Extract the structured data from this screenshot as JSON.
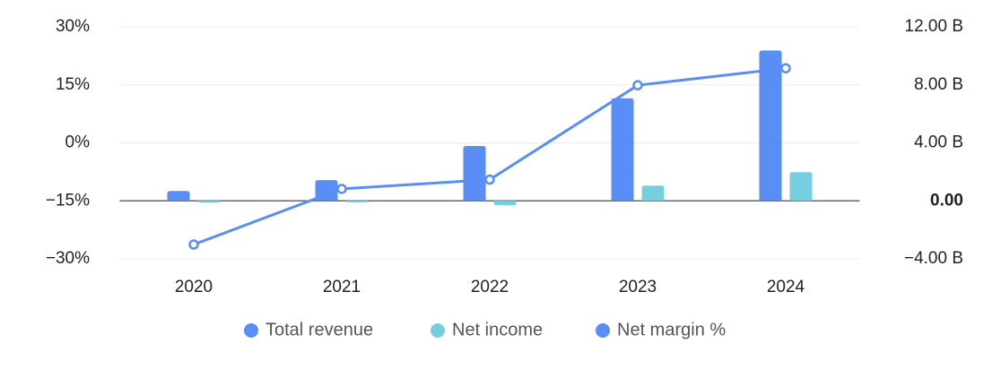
{
  "chart_data": {
    "type": "bar",
    "categories": [
      "2020",
      "2021",
      "2022",
      "2023",
      "2024"
    ],
    "series": [
      {
        "name": "Total revenue",
        "type": "bar",
        "axis": "y2",
        "color": "#5a8ef7",
        "values": [
          0.68,
          1.43,
          3.78,
          7.07,
          10.37
        ]
      },
      {
        "name": "Net income",
        "type": "bar",
        "axis": "y2",
        "color": "#76cfe0",
        "values": [
          -0.12,
          -0.1,
          -0.3,
          1.05,
          1.98
        ]
      },
      {
        "name": "Net margin %",
        "type": "line",
        "color": "#5a8ef7",
        "values": [
          -26.3,
          -11.9,
          -9.5,
          14.9,
          19.3
        ]
      }
    ],
    "ylim": [
      -30,
      30
    ],
    "yticks": [
      {
        "value": 30,
        "label": "30%"
      },
      {
        "value": 15,
        "label": "15%"
      },
      {
        "value": 0,
        "label": "0%"
      },
      {
        "value": -15,
        "label": "−15%"
      },
      {
        "value": -30,
        "label": "−30%"
      }
    ],
    "y2lim": [
      -4,
      12
    ],
    "y2ticks": [
      {
        "value": 12,
        "label": "12.00 B"
      },
      {
        "value": 8,
        "label": "8.00 B"
      },
      {
        "value": 4,
        "label": "4.00 B"
      },
      {
        "value": 0,
        "label": "0.00"
      },
      {
        "value": -4,
        "label": "−4.00 B"
      }
    ],
    "grid": true
  }
}
